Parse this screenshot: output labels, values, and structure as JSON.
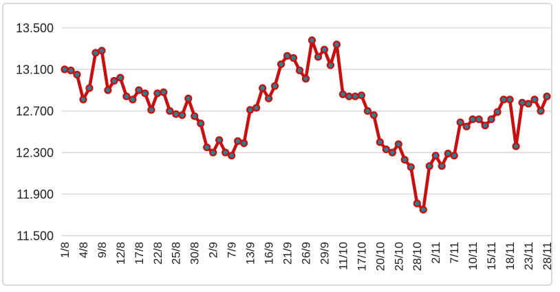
{
  "window": {
    "background_color": "#ffffff",
    "frame_border_color": "#d9d9d9"
  },
  "chart_data": {
    "type": "line",
    "title": "",
    "xlabel": "",
    "ylabel": "",
    "legend": "none",
    "grid": "horizontal",
    "gridline_color": "#d9d9d9",
    "axis_text_color": "#1e1e1e",
    "ylim": [
      11.5,
      13.5
    ],
    "y_ticks": [
      {
        "label": "13.500",
        "value": 13.5
      },
      {
        "label": "13.100",
        "value": 13.1
      },
      {
        "label": "12.700",
        "value": 12.7
      },
      {
        "label": "12.300",
        "value": 12.3
      },
      {
        "label": "11.900",
        "value": 11.9
      },
      {
        "label": "11.500",
        "value": 11.5
      }
    ],
    "x_tick_labels": [
      "1/8",
      "4/8",
      "9/8",
      "12/8",
      "17/8",
      "22/8",
      "25/8",
      "30/8",
      "2/9",
      "7/9",
      "13/9",
      "16/9",
      "21/9",
      "26/9",
      "29/9",
      "11/10",
      "17/10",
      "20/10",
      "25/10",
      "28/10",
      "2/11",
      "7/11",
      "10/11",
      "15/11",
      "18/11",
      "23/11",
      "28/11"
    ],
    "x_label_every_n_points": 3,
    "series": [
      {
        "name": "",
        "line_color": "#c81010",
        "marker_fill": "#2b7f91",
        "marker_border": "#c81010",
        "values": [
          13.1,
          13.09,
          13.05,
          12.81,
          12.92,
          13.26,
          13.28,
          12.9,
          12.99,
          13.02,
          12.84,
          12.81,
          12.9,
          12.87,
          12.71,
          12.87,
          12.88,
          12.7,
          12.67,
          12.66,
          12.82,
          12.65,
          12.58,
          12.35,
          12.3,
          12.42,
          12.3,
          12.27,
          12.41,
          12.39,
          12.71,
          12.73,
          12.92,
          12.82,
          12.94,
          13.15,
          13.23,
          13.21,
          13.09,
          13.01,
          13.38,
          13.22,
          13.29,
          13.14,
          13.34,
          12.86,
          12.84,
          12.84,
          12.85,
          12.7,
          12.66,
          12.4,
          12.33,
          12.3,
          12.38,
          12.23,
          12.16,
          11.81,
          11.75,
          12.17,
          12.27,
          12.17,
          12.29,
          12.27,
          12.59,
          12.55,
          12.62,
          12.62,
          12.56,
          12.62,
          12.69,
          12.81,
          12.81,
          12.36,
          12.78,
          12.77,
          12.81,
          12.7,
          12.84
        ]
      }
    ]
  }
}
